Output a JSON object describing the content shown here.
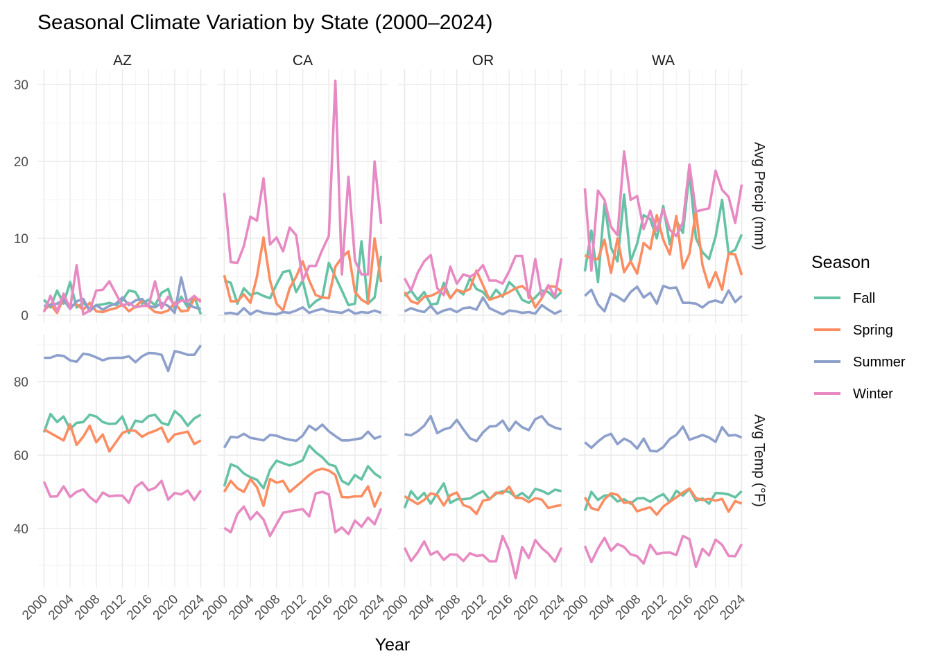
{
  "chart_data": {
    "type": "line",
    "title": "Seasonal Climate Variation by State (2000–2024)",
    "xlabel": "Year",
    "x": [
      2000,
      2001,
      2002,
      2003,
      2004,
      2005,
      2006,
      2007,
      2008,
      2009,
      2010,
      2011,
      2012,
      2013,
      2014,
      2015,
      2016,
      2017,
      2018,
      2019,
      2020,
      2021,
      2022,
      2023,
      2024
    ],
    "x_ticks": [
      "2000",
      "2004",
      "2008",
      "2012",
      "2016",
      "2020",
      "2024"
    ],
    "columns": [
      "AZ",
      "CA",
      "OR",
      "WA"
    ],
    "rows": [
      {
        "label": "Avg Precip (mm)",
        "key": "precip",
        "ylim": [
          -1,
          32
        ],
        "ticks": [
          0,
          10,
          20,
          30
        ]
      },
      {
        "label": "Avg Temp (°F)",
        "key": "temp",
        "ylim": [
          24,
          93
        ],
        "ticks": [
          40,
          60,
          80
        ]
      }
    ],
    "legend": {
      "title": "Season",
      "position": "right",
      "entries": [
        "Fall",
        "Spring",
        "Summer",
        "Winter"
      ]
    },
    "colors": {
      "Fall": "#66c2a5",
      "Spring": "#fc8d62",
      "Summer": "#8da0cb",
      "Winter": "#e78ac3"
    },
    "series": {
      "precip": {
        "AZ": {
          "Fall": [
            2.0,
            1.0,
            3.2,
            1.5,
            4.3,
            1.0,
            1.6,
            0.8,
            1.3,
            1.4,
            1.6,
            1.3,
            1.9,
            3.2,
            3.0,
            1.5,
            2.0,
            1.3,
            2.9,
            3.4,
            0.8,
            2.4,
            1.0,
            2.4,
            0.1
          ],
          "Spring": [
            0.6,
            1.4,
            0.3,
            2.2,
            1.2,
            1.4,
            0.7,
            1.6,
            0.5,
            0.4,
            0.7,
            0.9,
            1.4,
            0.5,
            1.1,
            1.9,
            1.1,
            0.4,
            0.3,
            0.6,
            1.6,
            0.5,
            0.6,
            2.1,
            2.0
          ],
          "Summer": [
            1.2,
            1.3,
            1.5,
            2.0,
            0.8,
            1.8,
            2.1,
            0.5,
            1.3,
            0.7,
            1.2,
            1.5,
            2.3,
            1.3,
            1.9,
            2.1,
            1.2,
            1.0,
            1.6,
            1.2,
            0.3,
            4.9,
            1.4,
            1.0,
            0.8
          ],
          "Winter": [
            0.4,
            2.5,
            0.5,
            2.8,
            0.8,
            6.5,
            0.1,
            0.6,
            3.2,
            3.3,
            4.4,
            2.8,
            1.2,
            1.6,
            1.0,
            1.2,
            1.2,
            4.4,
            0.9,
            2.4,
            1.3,
            1.9,
            1.8,
            2.5,
            1.7
          ]
        },
        "CA": {
          "Fall": [
            4.5,
            4.2,
            1.5,
            3.5,
            2.6,
            2.9,
            2.5,
            2.2,
            4.0,
            5.6,
            5.8,
            3.0,
            4.5,
            1.0,
            1.8,
            2.3,
            6.8,
            5.0,
            3.2,
            1.3,
            1.5,
            9.6,
            1.5,
            2.3,
            7.7
          ],
          "Spring": [
            5.2,
            1.8,
            1.8,
            2.7,
            1.6,
            5.0,
            10.1,
            4.5,
            1.5,
            0.6,
            3.5,
            5.0,
            7.0,
            4.5,
            2.6,
            2.3,
            2.2,
            6.3,
            7.5,
            8.3,
            3.0,
            2.0,
            1.5,
            10.0,
            4.3
          ],
          "Summer": [
            0.2,
            0.3,
            0.1,
            0.9,
            0.1,
            0.6,
            0.3,
            0.2,
            0.1,
            0.4,
            0.3,
            0.6,
            1.0,
            0.3,
            0.6,
            0.8,
            0.5,
            0.4,
            0.3,
            0.7,
            0.2,
            0.4,
            0.3,
            0.6,
            0.3
          ],
          "Winter": [
            15.9,
            6.9,
            6.8,
            9.0,
            12.8,
            12.3,
            17.8,
            9.2,
            10.1,
            8.3,
            11.4,
            10.4,
            4.5,
            6.4,
            6.4,
            8.5,
            10.3,
            30.5,
            5.3,
            18.0,
            7.1,
            5.3,
            5.3,
            20.0,
            11.9
          ]
        },
        "OR": {
          "Fall": [
            2.5,
            3.2,
            2.0,
            3.0,
            1.4,
            1.5,
            4.2,
            2.2,
            3.3,
            2.7,
            4.8,
            3.4,
            3.0,
            2.0,
            3.3,
            2.4,
            4.3,
            3.5,
            2.0,
            1.6,
            2.3,
            3.2,
            3.0,
            2.2,
            3.0
          ],
          "Spring": [
            3.0,
            1.8,
            1.5,
            2.4,
            2.5,
            2.9,
            3.6,
            2.2,
            3.3,
            3.0,
            3.4,
            5.8,
            3.9,
            2.0,
            2.3,
            2.6,
            3.0,
            3.5,
            3.8,
            3.0,
            1.0,
            2.2,
            3.8,
            3.7,
            3.1
          ],
          "Summer": [
            0.5,
            0.9,
            0.6,
            0.4,
            1.2,
            0.2,
            0.6,
            0.8,
            0.4,
            0.9,
            1.0,
            0.7,
            2.3,
            0.9,
            0.5,
            0.1,
            0.6,
            0.5,
            0.3,
            0.4,
            0.2,
            1.3,
            0.7,
            0.2,
            0.6
          ],
          "Winter": [
            4.8,
            3.2,
            5.5,
            7.0,
            7.8,
            3.5,
            2.6,
            6.3,
            4.1,
            5.3,
            5.0,
            5.5,
            6.5,
            4.5,
            4.5,
            4.1,
            5.7,
            7.7,
            7.7,
            2.2,
            7.3,
            2.4,
            3.9,
            2.4,
            7.4
          ]
        },
        "WA": {
          "Fall": [
            5.7,
            11.0,
            4.3,
            14.5,
            8.8,
            7.0,
            15.7,
            7.0,
            9.3,
            13.0,
            12.5,
            10.0,
            14.2,
            9.2,
            12.3,
            10.7,
            18.6,
            10.0,
            8.2,
            7.3,
            10.2,
            15.0,
            8.0,
            8.5,
            10.5
          ],
          "Spring": [
            7.8,
            7.3,
            7.3,
            9.8,
            5.5,
            10.0,
            5.6,
            7.0,
            5.4,
            9.4,
            8.6,
            13.0,
            9.8,
            7.9,
            12.9,
            6.1,
            8.0,
            13.5,
            6.5,
            3.6,
            5.6,
            3.3,
            8.0,
            7.9,
            5.2
          ],
          "Summer": [
            2.5,
            3.3,
            1.4,
            0.5,
            2.8,
            2.4,
            1.8,
            3.0,
            3.7,
            2.3,
            2.9,
            1.5,
            3.8,
            3.5,
            3.6,
            1.6,
            1.6,
            1.5,
            1.0,
            1.7,
            1.9,
            1.6,
            3.2,
            1.7,
            2.5
          ],
          "Winter": [
            16.5,
            5.8,
            16.2,
            15.0,
            11.5,
            10.4,
            21.3,
            15.0,
            15.5,
            11.2,
            13.6,
            11.0,
            13.8,
            11.1,
            10.3,
            12.1,
            19.6,
            13.5,
            13.7,
            13.9,
            18.8,
            16.3,
            15.4,
            12.0,
            17.0
          ]
        }
      },
      "temp": {
        "AZ": {
          "Fall": [
            66.2,
            71.2,
            69.0,
            70.5,
            67.1,
            68.8,
            69.0,
            71.0,
            70.5,
            69.0,
            68.5,
            68.6,
            70.5,
            66.0,
            69.4,
            69.0,
            70.6,
            71.0,
            68.8,
            68.2,
            72.0,
            70.5,
            68.0,
            70.0,
            71.0
          ],
          "Spring": [
            67.0,
            66.0,
            65.0,
            64.0,
            68.4,
            62.8,
            65.0,
            68.0,
            63.5,
            65.6,
            61.0,
            63.5,
            66.0,
            66.8,
            66.6,
            65.0,
            66.0,
            66.6,
            67.5,
            63.6,
            65.6,
            66.0,
            66.4,
            63.0,
            64.0
          ],
          "Summer": [
            86.5,
            86.5,
            87.2,
            87.0,
            85.8,
            85.4,
            87.6,
            87.3,
            86.6,
            85.8,
            86.4,
            86.5,
            86.5,
            86.9,
            85.3,
            86.9,
            87.8,
            87.7,
            87.3,
            82.9,
            88.3,
            87.9,
            87.3,
            87.3,
            89.9
          ],
          "Winter": [
            52.8,
            48.7,
            48.8,
            51.5,
            48.6,
            50.0,
            50.7,
            48.6,
            47.2,
            49.8,
            48.8,
            49.0,
            49.0,
            47.0,
            51.3,
            52.6,
            50.4,
            51.1,
            53.0,
            47.9,
            49.7,
            49.3,
            50.4,
            47.8,
            50.4
          ]
        },
        "CA": {
          "Fall": [
            51.5,
            57.5,
            56.8,
            55.0,
            54.0,
            53.3,
            51.0,
            56.0,
            58.5,
            57.8,
            57.2,
            57.8,
            58.6,
            62.6,
            60.8,
            59.4,
            57.5,
            57.0,
            53.0,
            52.0,
            54.6,
            53.4,
            57.0,
            55.0,
            53.8
          ],
          "Spring": [
            50.0,
            53.0,
            51.0,
            50.0,
            53.5,
            51.3,
            46.2,
            53.5,
            52.5,
            53.0,
            50.0,
            51.5,
            53.0,
            54.6,
            55.8,
            56.3,
            55.8,
            54.6,
            48.6,
            48.5,
            48.8,
            48.8,
            51.5,
            46.0,
            50.0
          ],
          "Summer": [
            62.0,
            65.0,
            64.8,
            65.8,
            64.7,
            64.4,
            64.0,
            65.5,
            65.3,
            64.6,
            64.2,
            63.9,
            65.3,
            68.0,
            66.8,
            68.3,
            66.5,
            65.2,
            64.0,
            64.0,
            64.3,
            64.6,
            66.4,
            64.5,
            65.2
          ],
          "Winter": [
            40.2,
            39.0,
            44.0,
            46.0,
            42.5,
            44.5,
            42.5,
            38.0,
            41.2,
            44.3,
            44.7,
            45.0,
            45.3,
            43.3,
            49.6,
            50.0,
            49.3,
            39.0,
            40.3,
            38.5,
            42.2,
            40.5,
            43.0,
            41.2,
            45.5
          ]
        },
        "OR": {
          "Fall": [
            45.6,
            50.2,
            48.0,
            49.7,
            46.8,
            49.6,
            52.3,
            47.0,
            48.0,
            48.0,
            48.2,
            49.3,
            50.2,
            48.0,
            49.5,
            50.2,
            50.0,
            48.6,
            49.7,
            48.2,
            50.8,
            50.3,
            49.4,
            50.6,
            50.2
          ],
          "Spring": [
            48.8,
            47.8,
            46.7,
            47.8,
            49.6,
            49.1,
            46.3,
            49.1,
            49.8,
            46.4,
            45.8,
            44.0,
            47.6,
            48.0,
            49.8,
            49.6,
            51.4,
            48.4,
            48.3,
            47.2,
            48.3,
            47.9,
            45.6,
            46.1,
            46.4
          ],
          "Summer": [
            65.7,
            65.4,
            66.5,
            68.0,
            70.6,
            66.0,
            67.0,
            67.5,
            69.6,
            67.0,
            64.6,
            63.8,
            66.2,
            67.8,
            67.9,
            69.4,
            66.6,
            69.1,
            67.6,
            66.8,
            69.8,
            70.6,
            68.4,
            67.5,
            67.0
          ],
          "Winter": [
            34.8,
            31.2,
            33.5,
            36.5,
            32.9,
            33.8,
            31.5,
            33.0,
            32.9,
            31.2,
            33.3,
            32.6,
            32.8,
            31.1,
            31.1,
            38.0,
            34.0,
            26.5,
            35.0,
            32.0,
            36.9,
            34.7,
            33.2,
            31.0,
            34.8
          ]
        },
        "WA": {
          "Fall": [
            44.9,
            50.0,
            47.8,
            49.0,
            49.1,
            47.4,
            48.0,
            46.8,
            48.2,
            48.3,
            47.3,
            48.5,
            49.4,
            47.2,
            50.3,
            49.0,
            50.8,
            47.5,
            48.2,
            46.8,
            49.7,
            49.6,
            49.3,
            48.5,
            50.2
          ],
          "Spring": [
            48.5,
            45.6,
            45.0,
            48.0,
            49.6,
            49.2,
            47.0,
            47.3,
            44.7,
            45.3,
            45.8,
            43.8,
            46.0,
            47.3,
            48.5,
            49.8,
            50.9,
            48.3,
            47.8,
            48.1,
            47.6,
            48.1,
            44.6,
            47.5,
            46.8
          ],
          "Summer": [
            63.5,
            62.0,
            63.7,
            65.1,
            65.8,
            63.0,
            64.5,
            63.6,
            61.8,
            64.5,
            61.2,
            61.0,
            62.2,
            64.4,
            65.5,
            67.8,
            64.2,
            64.8,
            65.5,
            64.8,
            63.6,
            67.6,
            65.3,
            65.5,
            64.8
          ],
          "Winter": [
            35.3,
            30.9,
            34.6,
            37.5,
            34.0,
            35.8,
            35.0,
            33.0,
            32.5,
            30.5,
            35.6,
            33.1,
            33.4,
            33.5,
            32.8,
            38.0,
            37.1,
            29.6,
            34.5,
            32.7,
            37.0,
            35.6,
            32.6,
            32.5,
            35.8
          ]
        }
      }
    }
  }
}
